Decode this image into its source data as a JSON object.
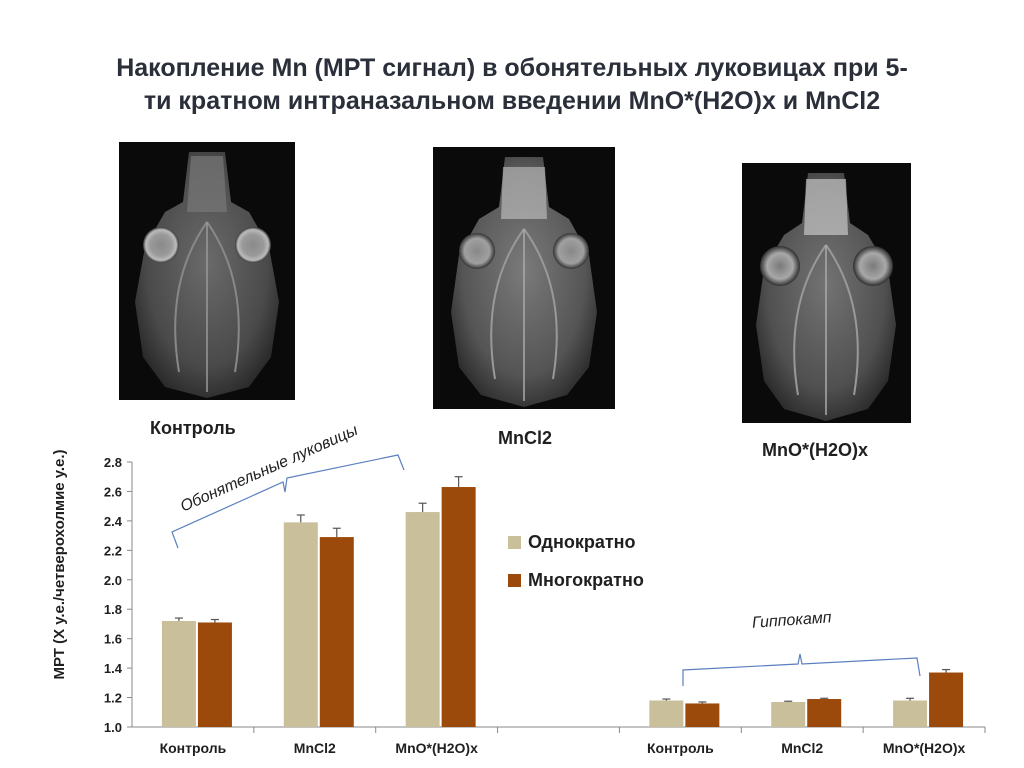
{
  "title": {
    "line1": "Накопление Mn (МРТ сигнал) в обонятельных луковицах при 5-",
    "line2": "ти кратном  интраназальном введении MnO*(H2O)x и MnCl2"
  },
  "images": [
    {
      "label": "Контроль"
    },
    {
      "label": "MnCl2"
    },
    {
      "label": "MnO*(H2O)x"
    }
  ],
  "annotations": {
    "olfactory": "Обонятельные луковицы",
    "hippocampus": "Гиппокамп"
  },
  "colors": {
    "single": "#c9bf9b",
    "multiple": "#9c4a0b",
    "bracket": "#5b7fc0",
    "error": "#555555"
  },
  "chart_data": {
    "type": "bar",
    "ylabel": "МРТ (Х у.е./четверохолмие у.е.)",
    "ylim": [
      1.0,
      2.8
    ],
    "yticks": [
      "1.0",
      "1.2",
      "1.4",
      "1.6",
      "1.8",
      "2.0",
      "2.2",
      "2.4",
      "2.6",
      "2.8"
    ],
    "categories": [
      "Контроль",
      "MnCl2",
      "MnO*(H2O)x",
      "",
      "Контроль",
      "MnCl2",
      "MnO*(H2O)x"
    ],
    "series": [
      {
        "name": "Однократно",
        "values": [
          1.72,
          2.39,
          2.46,
          null,
          1.18,
          1.17,
          1.18
        ],
        "errors": [
          0.02,
          0.05,
          0.06,
          null,
          0.01,
          0.005,
          0.015
        ]
      },
      {
        "name": "Многократно",
        "values": [
          1.71,
          2.29,
          2.63,
          null,
          1.16,
          1.19,
          1.37
        ],
        "errors": [
          0.02,
          0.06,
          0.07,
          null,
          0.01,
          0.005,
          0.02
        ]
      }
    ],
    "legend_position": "right",
    "grid": false
  }
}
